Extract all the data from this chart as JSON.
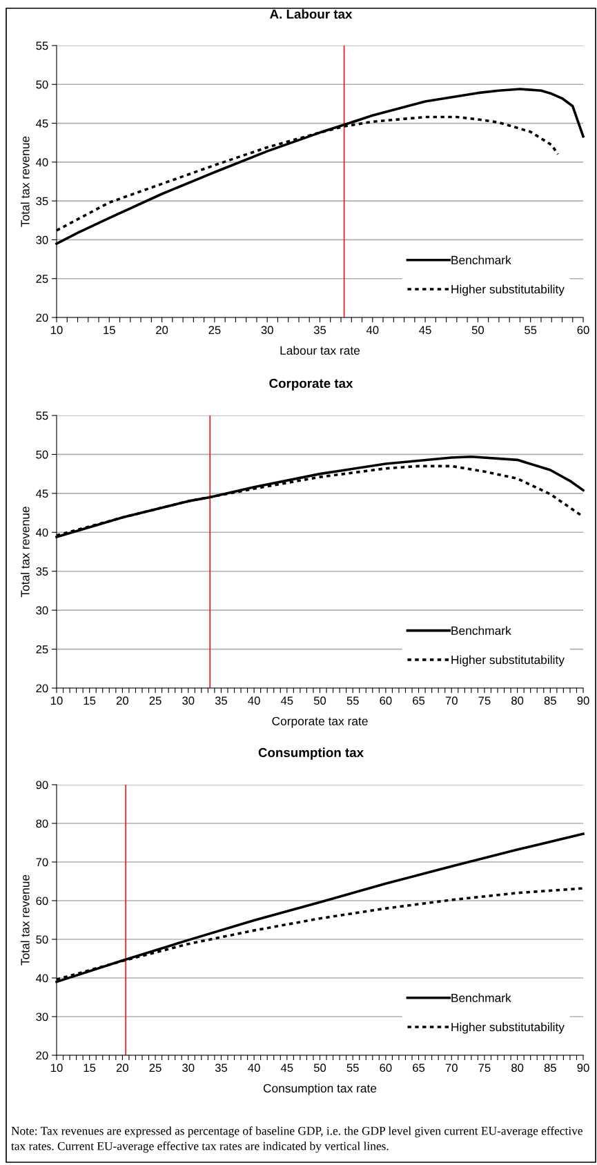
{
  "chart_data": [
    {
      "type": "line",
      "title": "A. Labour tax",
      "xlabel": "Labour tax rate",
      "ylabel": "Total tax revenue",
      "xlim": [
        10,
        60
      ],
      "ylim": [
        20,
        55
      ],
      "yticks": [
        20,
        25,
        30,
        35,
        40,
        45,
        50,
        55
      ],
      "xticks": [
        10,
        {
          "value": 11,
          "label": null
        },
        {
          "value": 12,
          "label": null
        },
        {
          "value": 13,
          "label": null
        },
        {
          "value": 14,
          "label": null
        },
        15,
        {
          "value": 16,
          "label": null
        },
        {
          "value": 17,
          "label": null
        },
        {
          "value": 18,
          "label": null
        },
        {
          "value": 19,
          "label": null
        },
        20,
        {
          "value": 21,
          "label": null
        },
        {
          "value": 22,
          "label": null
        },
        {
          "value": 23,
          "label": null
        },
        {
          "value": 24,
          "label": null
        },
        25,
        {
          "value": 26,
          "label": null
        },
        {
          "value": 27,
          "label": null
        },
        {
          "value": 28,
          "label": null
        },
        {
          "value": 29,
          "label": null
        },
        30,
        {
          "value": 31,
          "label": null
        },
        {
          "value": 32,
          "label": null
        },
        {
          "value": 33,
          "label": null
        },
        {
          "value": 34,
          "label": null
        },
        35,
        {
          "value": 36,
          "label": null
        },
        {
          "value": 37,
          "label": null
        },
        {
          "value": 38,
          "label": null
        },
        {
          "value": 39,
          "label": null
        },
        40,
        {
          "value": 41,
          "label": null
        },
        {
          "value": 42,
          "label": null
        },
        {
          "value": 43,
          "label": null
        },
        {
          "value": 44,
          "label": null
        },
        45,
        {
          "value": 46,
          "label": null
        },
        {
          "value": 47,
          "label": null
        },
        {
          "value": 48,
          "label": null
        },
        {
          "value": 49,
          "label": null
        },
        50,
        {
          "value": 51,
          "label": null
        },
        {
          "value": 52,
          "label": null
        },
        {
          "value": 53,
          "label": null
        },
        {
          "value": 54,
          "label": null
        },
        55,
        {
          "value": 56,
          "label": null
        },
        {
          "value": 57,
          "label": null
        },
        {
          "value": 58,
          "label": null
        },
        {
          "value": 59,
          "label": null
        },
        60
      ],
      "grid": "y",
      "legend": "bottom right",
      "ref_lines": [
        {
          "axis": "x",
          "value": 37.3,
          "color": "#ff0000"
        }
      ],
      "series": [
        {
          "name": "Benchmark",
          "color": "#000000",
          "line_style": "solid",
          "x": [
            10,
            12,
            15,
            20,
            25,
            30,
            35,
            37.3,
            40,
            45,
            50,
            52,
            54,
            56,
            57,
            58,
            59,
            60
          ],
          "values": [
            29.5,
            30.9,
            32.8,
            35.9,
            38.7,
            41.4,
            43.8,
            44.8,
            46.0,
            47.8,
            48.9,
            49.2,
            49.4,
            49.2,
            48.8,
            48.2,
            47.2,
            43.3
          ]
        },
        {
          "name": "Higher substitutability",
          "color": "#000000",
          "line_style": "dashed",
          "x": [
            10,
            15,
            20,
            25,
            30,
            35,
            37.3,
            40,
            45,
            48,
            50,
            52,
            55,
            57,
            57.6
          ],
          "values": [
            31.2,
            34.8,
            37.2,
            39.6,
            41.9,
            43.8,
            44.6,
            45.2,
            45.8,
            45.8,
            45.5,
            45.1,
            43.9,
            42.2,
            41.0
          ]
        }
      ]
    },
    {
      "type": "line",
      "title": "Corporate tax",
      "xlabel": "Corporate tax rate",
      "ylabel": "Total tax revenue",
      "xlim": [
        10,
        90
      ],
      "ylim": [
        20,
        55
      ],
      "yticks": [
        20,
        25,
        30,
        35,
        40,
        45,
        50,
        55
      ],
      "xticks": [
        10,
        {
          "value": 11,
          "label": null
        },
        {
          "value": 12,
          "label": null
        },
        {
          "value": 13,
          "label": null
        },
        {
          "value": 14,
          "label": null
        },
        15,
        {
          "value": 16,
          "label": null
        },
        {
          "value": 17,
          "label": null
        },
        {
          "value": 18,
          "label": null
        },
        {
          "value": 19,
          "label": null
        },
        20,
        {
          "value": 21,
          "label": null
        },
        {
          "value": 22,
          "label": null
        },
        {
          "value": 23,
          "label": null
        },
        {
          "value": 24,
          "label": null
        },
        25,
        {
          "value": 26,
          "label": null
        },
        {
          "value": 27,
          "label": null
        },
        {
          "value": 28,
          "label": null
        },
        {
          "value": 29,
          "label": null
        },
        30,
        {
          "value": 31,
          "label": null
        },
        {
          "value": 32,
          "label": null
        },
        {
          "value": 33,
          "label": null
        },
        {
          "value": 34,
          "label": null
        },
        35,
        {
          "value": 36,
          "label": null
        },
        {
          "value": 37,
          "label": null
        },
        {
          "value": 38,
          "label": null
        },
        {
          "value": 39,
          "label": null
        },
        40,
        {
          "value": 41,
          "label": null
        },
        {
          "value": 42,
          "label": null
        },
        {
          "value": 43,
          "label": null
        },
        {
          "value": 44,
          "label": null
        },
        45,
        {
          "value": 46,
          "label": null
        },
        {
          "value": 47,
          "label": null
        },
        {
          "value": 48,
          "label": null
        },
        {
          "value": 49,
          "label": null
        },
        50,
        {
          "value": 51,
          "label": null
        },
        {
          "value": 52,
          "label": null
        },
        {
          "value": 53,
          "label": null
        },
        {
          "value": 54,
          "label": null
        },
        55,
        {
          "value": 56,
          "label": null
        },
        {
          "value": 57,
          "label": null
        },
        {
          "value": 58,
          "label": null
        },
        {
          "value": 59,
          "label": null
        },
        60,
        {
          "value": 61,
          "label": null
        },
        {
          "value": 62,
          "label": null
        },
        {
          "value": 63,
          "label": null
        },
        {
          "value": 64,
          "label": null
        },
        65,
        {
          "value": 66,
          "label": null
        },
        {
          "value": 67,
          "label": null
        },
        {
          "value": 68,
          "label": null
        },
        {
          "value": 69,
          "label": null
        },
        70,
        {
          "value": 71,
          "label": null
        },
        {
          "value": 72,
          "label": null
        },
        {
          "value": 73,
          "label": null
        },
        {
          "value": 74,
          "label": null
        },
        75,
        {
          "value": 76,
          "label": null
        },
        {
          "value": 77,
          "label": null
        },
        {
          "value": 78,
          "label": null
        },
        {
          "value": 79,
          "label": null
        },
        80,
        {
          "value": 81,
          "label": null
        },
        {
          "value": 82,
          "label": null
        },
        {
          "value": 83,
          "label": null
        },
        {
          "value": 84,
          "label": null
        },
        85,
        {
          "value": 86,
          "label": null
        },
        {
          "value": 87,
          "label": null
        },
        {
          "value": 88,
          "label": null
        },
        {
          "value": 89,
          "label": null
        },
        90
      ],
      "grid": "y",
      "legend": "bottom right",
      "ref_lines": [
        {
          "axis": "x",
          "value": 33.3,
          "color": "#ff0000"
        }
      ],
      "series": [
        {
          "name": "Benchmark",
          "color": "#000000",
          "line_style": "solid",
          "x": [
            10,
            20,
            30,
            33.3,
            40,
            50,
            60,
            70,
            73,
            80,
            85,
            88,
            90
          ],
          "values": [
            39.4,
            41.9,
            44.0,
            44.5,
            45.8,
            47.5,
            48.8,
            49.6,
            49.7,
            49.3,
            48.0,
            46.6,
            45.4
          ]
        },
        {
          "name": "Higher substitutability",
          "color": "#000000",
          "line_style": "dashed",
          "x": [
            10,
            20,
            30,
            40,
            50,
            60,
            65,
            70,
            75,
            80,
            85,
            90
          ],
          "values": [
            39.6,
            41.9,
            44.0,
            45.6,
            47.1,
            48.2,
            48.5,
            48.5,
            47.8,
            46.9,
            44.9,
            42.0
          ]
        }
      ]
    },
    {
      "type": "line",
      "title": "Consumption tax",
      "xlabel": "Consumption tax rate",
      "ylabel": "Total tax revenue",
      "xlim": [
        10,
        90
      ],
      "ylim": [
        20,
        90
      ],
      "yticks": [
        20,
        30,
        40,
        50,
        60,
        70,
        80,
        90
      ],
      "xticks": [
        10,
        {
          "value": 11,
          "label": null
        },
        {
          "value": 12,
          "label": null
        },
        {
          "value": 13,
          "label": null
        },
        {
          "value": 14,
          "label": null
        },
        15,
        {
          "value": 16,
          "label": null
        },
        {
          "value": 17,
          "label": null
        },
        {
          "value": 18,
          "label": null
        },
        {
          "value": 19,
          "label": null
        },
        20,
        {
          "value": 21,
          "label": null
        },
        {
          "value": 22,
          "label": null
        },
        {
          "value": 23,
          "label": null
        },
        {
          "value": 24,
          "label": null
        },
        25,
        {
          "value": 26,
          "label": null
        },
        {
          "value": 27,
          "label": null
        },
        {
          "value": 28,
          "label": null
        },
        {
          "value": 29,
          "label": null
        },
        30,
        {
          "value": 31,
          "label": null
        },
        {
          "value": 32,
          "label": null
        },
        {
          "value": 33,
          "label": null
        },
        {
          "value": 34,
          "label": null
        },
        35,
        {
          "value": 36,
          "label": null
        },
        {
          "value": 37,
          "label": null
        },
        {
          "value": 38,
          "label": null
        },
        {
          "value": 39,
          "label": null
        },
        40,
        {
          "value": 41,
          "label": null
        },
        {
          "value": 42,
          "label": null
        },
        {
          "value": 43,
          "label": null
        },
        {
          "value": 44,
          "label": null
        },
        45,
        {
          "value": 46,
          "label": null
        },
        {
          "value": 47,
          "label": null
        },
        {
          "value": 48,
          "label": null
        },
        {
          "value": 49,
          "label": null
        },
        50,
        {
          "value": 51,
          "label": null
        },
        {
          "value": 52,
          "label": null
        },
        {
          "value": 53,
          "label": null
        },
        {
          "value": 54,
          "label": null
        },
        55,
        {
          "value": 56,
          "label": null
        },
        {
          "value": 57,
          "label": null
        },
        {
          "value": 58,
          "label": null
        },
        {
          "value": 59,
          "label": null
        },
        60,
        {
          "value": 61,
          "label": null
        },
        {
          "value": 62,
          "label": null
        },
        {
          "value": 63,
          "label": null
        },
        {
          "value": 64,
          "label": null
        },
        65,
        {
          "value": 66,
          "label": null
        },
        {
          "value": 67,
          "label": null
        },
        {
          "value": 68,
          "label": null
        },
        {
          "value": 69,
          "label": null
        },
        70,
        {
          "value": 71,
          "label": null
        },
        {
          "value": 72,
          "label": null
        },
        {
          "value": 73,
          "label": null
        },
        {
          "value": 74,
          "label": null
        },
        75,
        {
          "value": 76,
          "label": null
        },
        {
          "value": 77,
          "label": null
        },
        {
          "value": 78,
          "label": null
        },
        {
          "value": 79,
          "label": null
        },
        80,
        {
          "value": 81,
          "label": null
        },
        {
          "value": 82,
          "label": null
        },
        {
          "value": 83,
          "label": null
        },
        {
          "value": 84,
          "label": null
        },
        85,
        {
          "value": 86,
          "label": null
        },
        {
          "value": 87,
          "label": null
        },
        {
          "value": 88,
          "label": null
        },
        {
          "value": 89,
          "label": null
        },
        90
      ],
      "grid": "y",
      "legend": "bottom right",
      "ref_lines": [
        {
          "axis": "x",
          "value": 20.5,
          "color": "#ff0000"
        }
      ],
      "annotations": [
        "Note: Tax revenues are expressed as percentage of baseline GDP, i.e. the GDP level given current EU-average effective tax rates. Current EU-average effective tax rates are indicated by vertical lines."
      ],
      "series": [
        {
          "name": "Benchmark",
          "color": "#000000",
          "line_style": "solid",
          "x": [
            10,
            20,
            30,
            40,
            50,
            60,
            70,
            80,
            90
          ],
          "values": [
            39.0,
            44.5,
            49.8,
            54.9,
            59.6,
            64.4,
            68.9,
            73.2,
            77.3
          ]
        },
        {
          "name": "Higher substitutability",
          "color": "#000000",
          "line_style": "dashed",
          "x": [
            10,
            20,
            30,
            40,
            50,
            60,
            70,
            80,
            90
          ],
          "values": [
            39.6,
            44.4,
            48.8,
            52.3,
            55.4,
            58.0,
            60.2,
            62.0,
            63.2
          ]
        }
      ]
    }
  ]
}
